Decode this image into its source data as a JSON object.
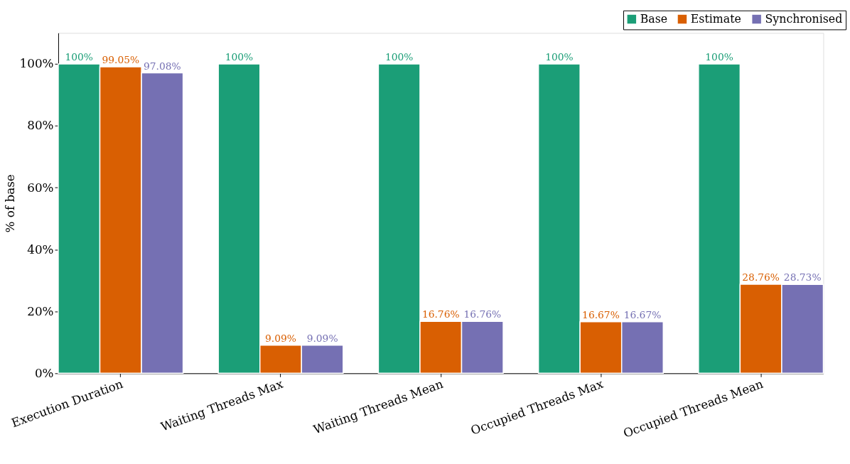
{
  "chart_data": {
    "type": "bar",
    "ylabel": "% of base",
    "categories": [
      "Execution Duration",
      "Waiting Threads Max",
      "Waiting Threads Mean",
      "Occupied Threads Max",
      "Occupied Threads Mean"
    ],
    "series": [
      {
        "name": "Base",
        "color": "#1b9e77",
        "values": [
          100,
          100,
          100,
          100,
          100
        ],
        "value_labels": [
          "100%",
          "100%",
          "100%",
          "100%",
          "100%"
        ]
      },
      {
        "name": "Estimate",
        "color": "#d95f02",
        "values": [
          99.05,
          9.09,
          16.76,
          16.67,
          28.76
        ],
        "value_labels": [
          "99.05%",
          "9.09%",
          "16.76%",
          "16.67%",
          "28.76%"
        ]
      },
      {
        "name": "Synchronised",
        "color": "#7570b3",
        "values": [
          97.08,
          9.09,
          16.76,
          16.67,
          28.73
        ],
        "value_labels": [
          "97.08%",
          "9.09%",
          "16.76%",
          "16.67%",
          "28.73%"
        ]
      }
    ],
    "ylim": [
      0,
      110
    ],
    "yticks": [
      {
        "value": 0,
        "label": "0%"
      },
      {
        "value": 20,
        "label": "20%"
      },
      {
        "value": 40,
        "label": "40%"
      },
      {
        "value": 60,
        "label": "60%"
      },
      {
        "value": 80,
        "label": "80%"
      },
      {
        "value": 100,
        "label": "100%"
      }
    ],
    "grid": false,
    "legend": "top right"
  }
}
